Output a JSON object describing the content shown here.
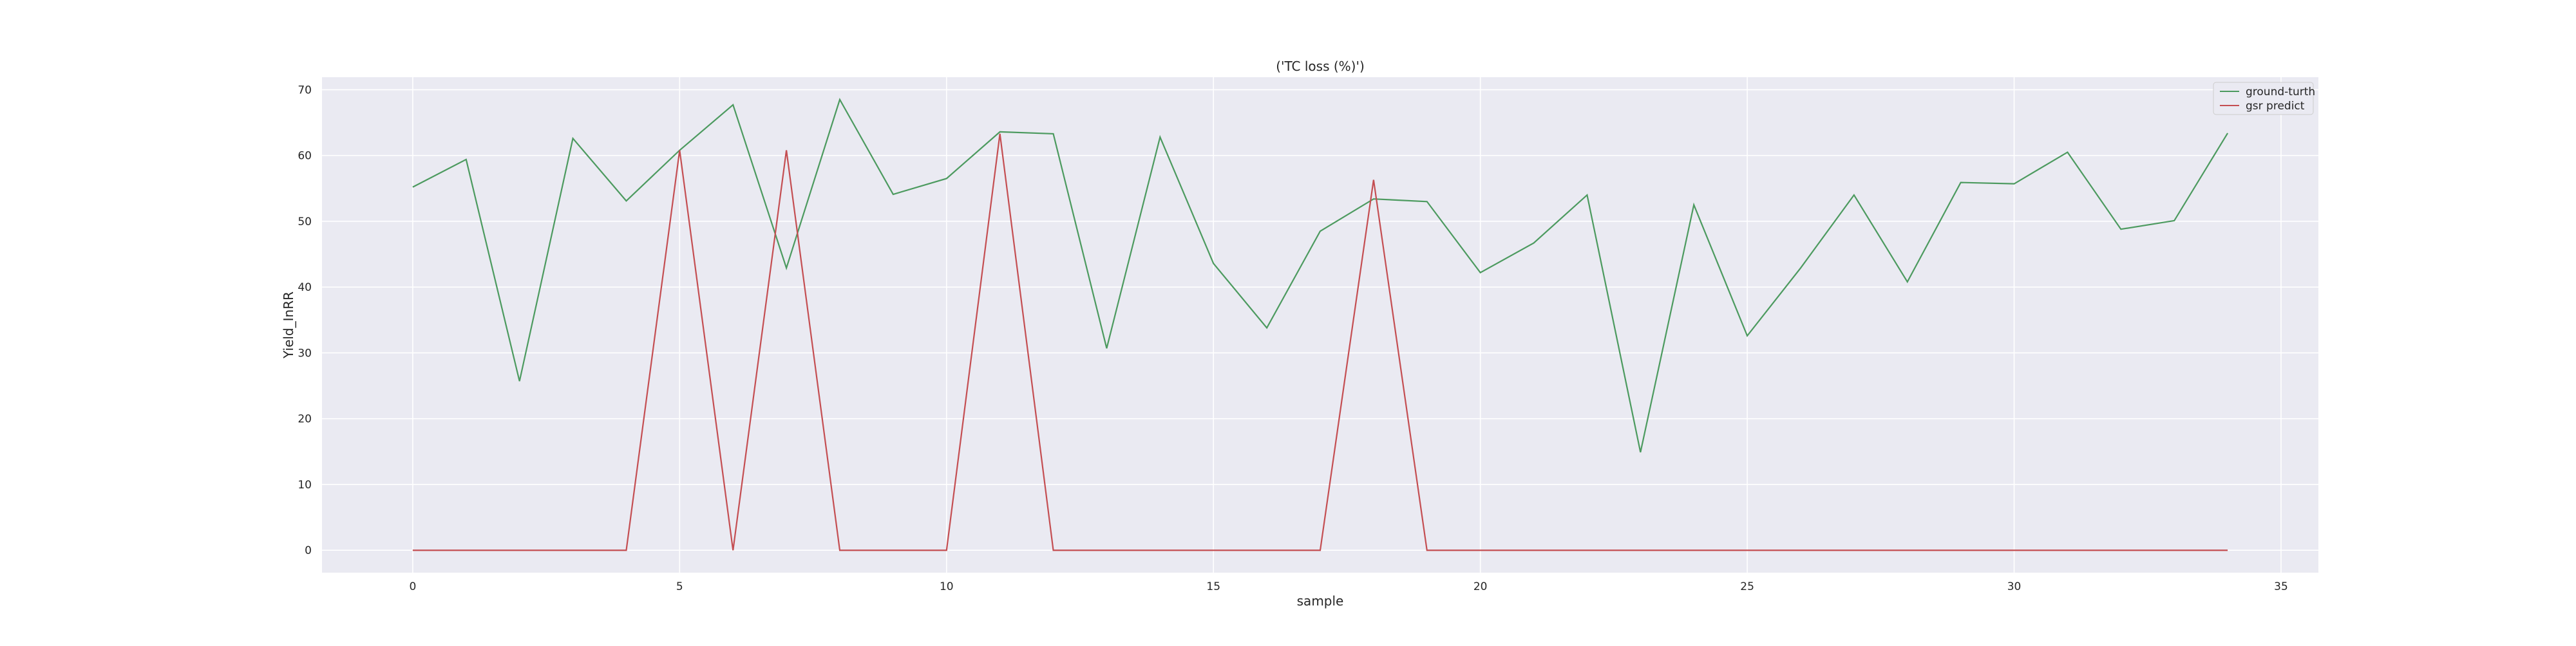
{
  "chart_data": {
    "type": "line",
    "title": "('TC loss (%)')",
    "xlabel": "sample",
    "ylabel": "Yield_InRR",
    "xlim": [
      -1.7,
      35.7
    ],
    "ylim": [
      -3.4,
      71.9
    ],
    "xticks": [
      0,
      5,
      10,
      15,
      20,
      25,
      30,
      35
    ],
    "yticks": [
      0,
      10,
      20,
      30,
      40,
      50,
      60,
      70
    ],
    "grid": true,
    "legend_position": "top-right",
    "x": [
      0,
      1,
      2,
      3,
      4,
      5,
      6,
      7,
      8,
      9,
      10,
      11,
      12,
      13,
      14,
      15,
      16,
      17,
      18,
      19,
      20,
      21,
      22,
      23,
      24,
      25,
      26,
      27,
      28,
      29,
      30,
      31,
      32,
      33,
      34
    ],
    "series": [
      {
        "name": "ground-turth",
        "color": "#4c9a5f",
        "values": [
          55.2,
          59.4,
          25.7,
          62.6,
          53.1,
          60.8,
          67.7,
          42.9,
          68.5,
          54.1,
          56.5,
          63.6,
          63.3,
          30.7,
          62.8,
          43.6,
          33.8,
          48.5,
          53.4,
          53.0,
          42.2,
          46.7,
          54.0,
          14.9,
          52.5,
          32.6,
          42.9,
          54.0,
          40.8,
          55.9,
          55.7,
          60.5,
          48.8,
          50.1,
          63.4
        ]
      },
      {
        "name": "gsr predict",
        "color": "#c44e52",
        "values": [
          0,
          0,
          0,
          0,
          0,
          60.8,
          0,
          60.8,
          0,
          0,
          0,
          63.3,
          0,
          0,
          0,
          0,
          0,
          0,
          56.3,
          0,
          0,
          0,
          0,
          0,
          0,
          0,
          0,
          0,
          0,
          0,
          0,
          0,
          0,
          0,
          0
        ]
      }
    ]
  }
}
